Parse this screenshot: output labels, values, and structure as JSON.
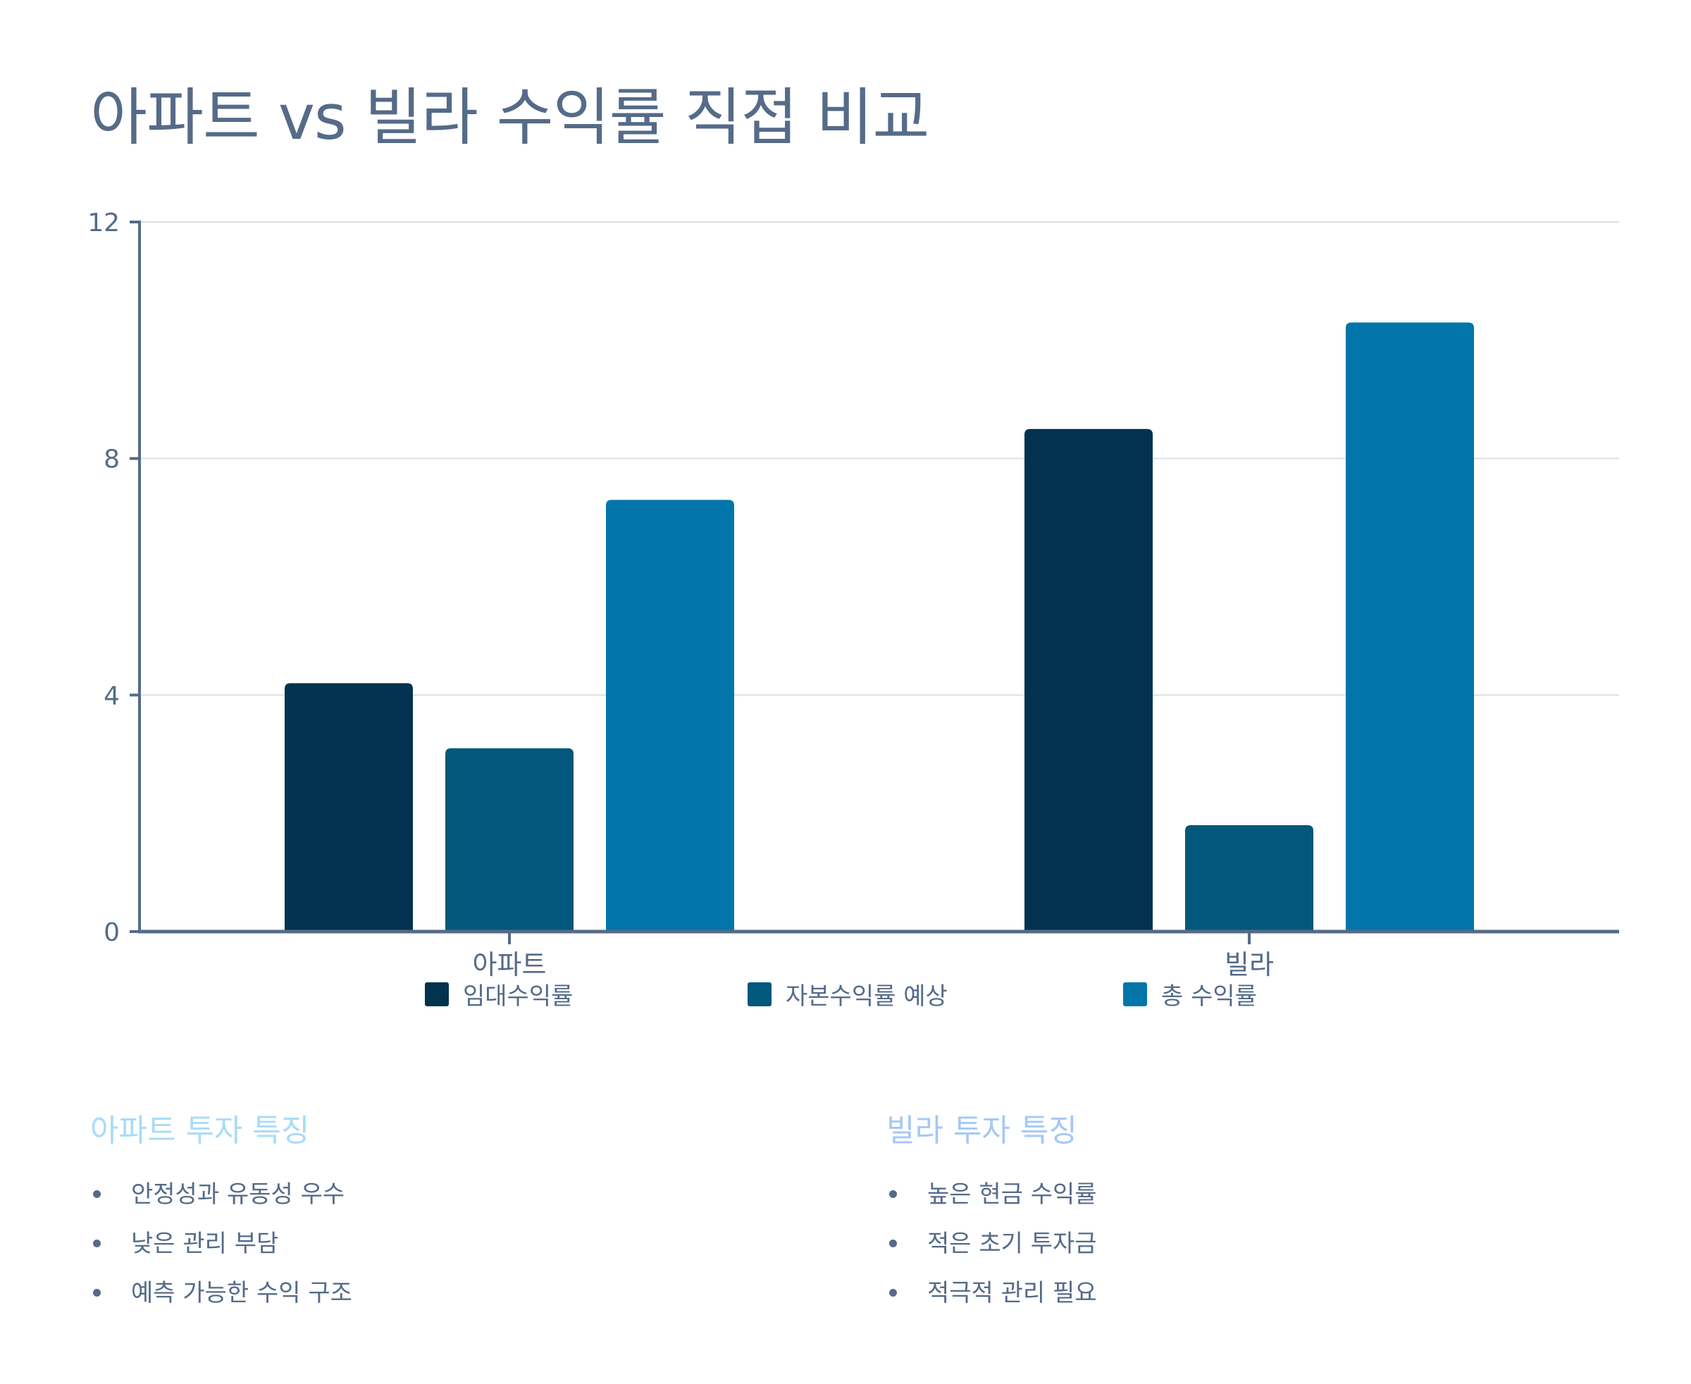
{
  "title": "아파트 vs 빌라 수익률 직접 비교",
  "chart_data": {
    "type": "bar",
    "categories": [
      "아파트",
      "빌라"
    ],
    "series": [
      {
        "name": "임대수익률",
        "values": [
          4.2,
          8.5
        ],
        "color": "#03324e"
      },
      {
        "name": "자본수익률 예상",
        "values": [
          3.1,
          1.8
        ],
        "color": "#02577c"
      },
      {
        "name": "총 수익률",
        "values": [
          7.3,
          10.3
        ],
        "color": "#0276ab"
      }
    ],
    "yticks": [
      0,
      4,
      8,
      12
    ],
    "ylim": [
      0,
      12
    ],
    "grid": true,
    "legend_position": "bottom"
  },
  "features": {
    "apartment": {
      "heading": "아파트 투자 특징",
      "heading_color": "#a9dcf6",
      "items": [
        "안정성과 유동성 우수",
        "낮은 관리 부담",
        "예측 가능한 수익 구조"
      ]
    },
    "villa": {
      "heading": "빌라 투자 특징",
      "heading_color": "#a6c8f7",
      "items": [
        "높은 현금 수익률",
        "적은 초기 투자금",
        "적극적 관리 필요"
      ]
    }
  },
  "colors": {
    "text": "#556b88",
    "axis": "#556b88",
    "grid": "#dcdfe4"
  }
}
